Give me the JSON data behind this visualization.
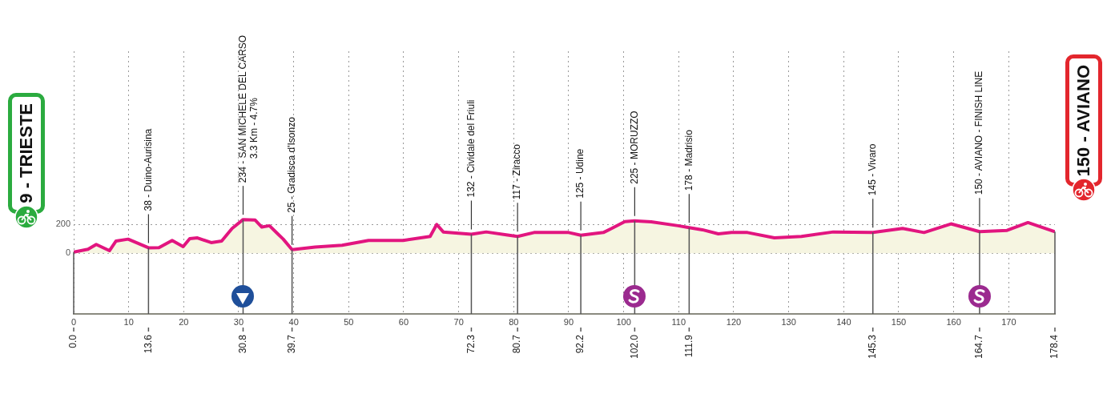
{
  "chart_data": {
    "type": "area",
    "x": [
      0,
      2.6,
      4.1,
      6.5,
      7.7,
      9.9,
      13.6,
      15.5,
      17.9,
      19.9,
      21.1,
      22.5,
      25,
      26.9,
      28.8,
      30.8,
      33,
      34.2,
      35.6,
      37.1,
      38.1,
      39.7,
      43.9,
      48.8,
      53.6,
      59.9,
      64.8,
      66,
      67.2,
      72.3,
      75,
      78.9,
      80.7,
      83.7,
      90,
      92.2,
      96.3,
      97.8,
      100.2,
      102,
      103.1,
      105,
      109.9,
      111.9,
      114.3,
      117.2,
      119.6,
      122.5,
      127.4,
      132.3,
      138.1,
      145.3,
      150.7,
      154.6,
      159.5,
      164.7,
      169.7,
      173.5,
      178.4
    ],
    "series": [
      {
        "color": "#e2157f",
        "values": [
          9,
          28,
          61,
          18,
          85,
          98,
          38,
          39,
          89,
          46,
          102,
          107,
          74,
          85,
          172,
          234,
          230,
          182,
          191,
          135,
          98,
          25,
          43,
          56,
          89,
          89,
          117,
          200,
          148,
          132,
          148,
          126,
          117,
          144,
          144,
          125,
          144,
          172,
          220,
          225,
          222,
          218,
          191,
          178,
          163,
          135,
          144,
          144,
          107,
          117,
          148,
          145,
          172,
          144,
          204,
          150,
          159,
          213,
          150
        ]
      }
    ],
    "xlim": [
      0,
      178.4
    ],
    "xticks": [
      0,
      10,
      20,
      30,
      40,
      50,
      60,
      70,
      80,
      90,
      100,
      110,
      120,
      130,
      140,
      150,
      160,
      170
    ],
    "ylim": [
      -420,
      1400
    ],
    "yticks": [
      0,
      200
    ],
    "grid": true,
    "annotations": [
      "9 - TRIESTE",
      {
        "text": "38 - Duino-Aurisina",
        "x": 13.6,
        "y": 38
      },
      {
        "text": "234 - SAN MICHELE DEL CARSO\n3.3 Km - 4.7%",
        "x": 30.8,
        "y": 234
      },
      {
        "text": "25 - Gradisca d'Isonzo",
        "x": 39.7,
        "y": 25
      },
      {
        "text": "132 - Cividale del Friuli",
        "x": 72.3,
        "y": 132
      },
      {
        "text": "117 - Ziracco",
        "x": 80.7,
        "y": 117
      },
      {
        "text": "125 - Udine",
        "x": 92.2,
        "y": 125
      },
      {
        "text": "225 - MORUZZO",
        "x": 102,
        "y": 225
      },
      {
        "text": "178 - Madrisio",
        "x": 111.9,
        "y": 178
      },
      {
        "text": "145 - Vivaro",
        "x": 145.3,
        "y": 145
      },
      {
        "text": "150 - AVIANO - FINISH LINE",
        "x": 164.7,
        "y": 150
      },
      "150 - AVIANO"
    ],
    "ref_lines": [
      {
        "axis": "x",
        "value": 0,
        "label": "0.0"
      },
      {
        "axis": "x",
        "value": 13.6,
        "label": "13.6"
      },
      {
        "axis": "x",
        "value": 30.8,
        "label": "30.8"
      },
      {
        "axis": "x",
        "value": 39.7,
        "label": "39.7"
      },
      {
        "axis": "x",
        "value": 72.3,
        "label": "72.3"
      },
      {
        "axis": "x",
        "value": 80.7,
        "label": "80.7"
      },
      {
        "axis": "x",
        "value": 92.2,
        "label": "92.2"
      },
      {
        "axis": "x",
        "value": 102,
        "label": "102.0"
      },
      {
        "axis": "x",
        "value": 111.9,
        "label": "111.9"
      },
      {
        "axis": "x",
        "value": 145.3,
        "label": "145.3"
      },
      {
        "axis": "x",
        "value": 164.7,
        "label": "164.7"
      },
      {
        "axis": "x",
        "value": 178.4,
        "label": "178.4"
      }
    ]
  }
}
